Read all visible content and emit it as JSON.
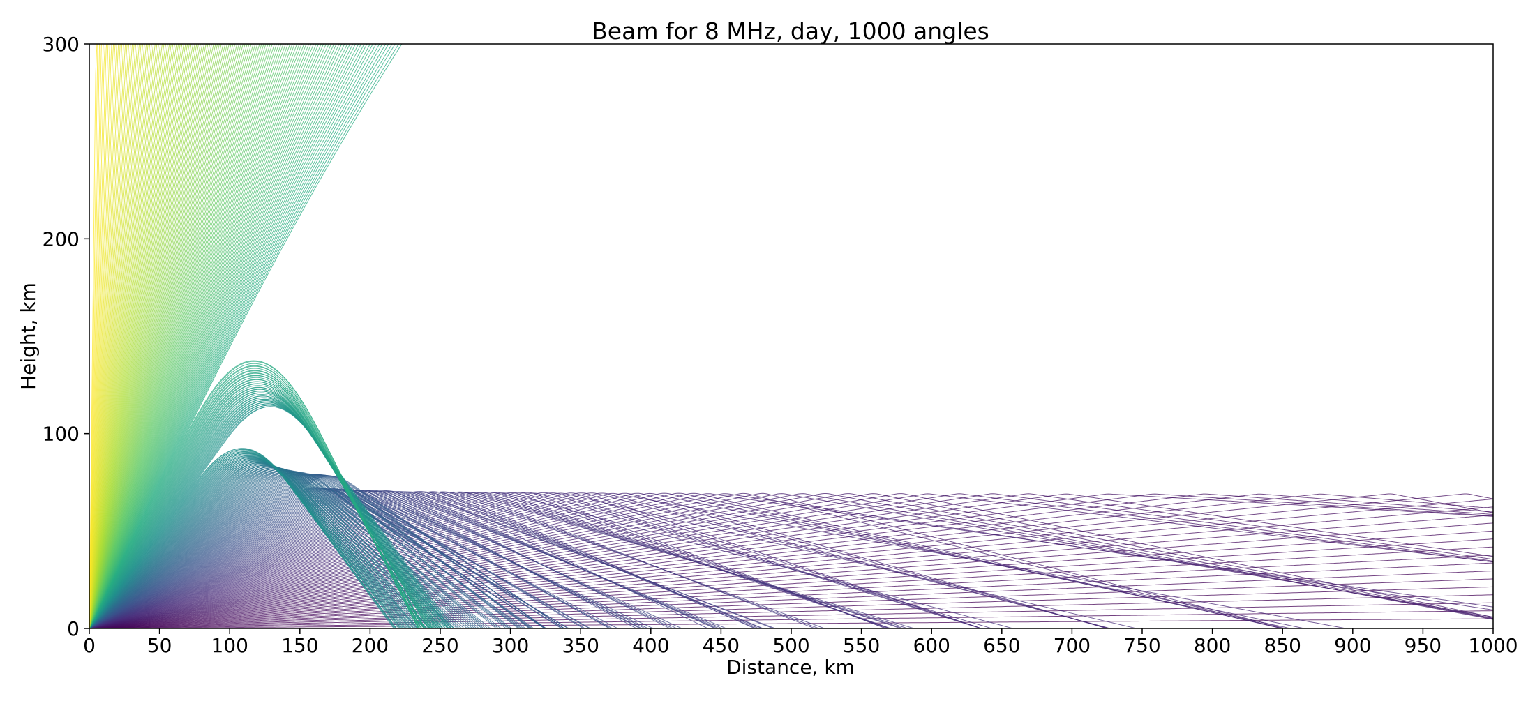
{
  "chart_data": {
    "type": "line",
    "title": "Beam for 8 MHz, day, 1000 angles",
    "xlabel": "Distance, km",
    "ylabel": "Height, km",
    "xlim": [
      0,
      1000
    ],
    "ylim": [
      0,
      300
    ],
    "x_ticks": [
      "0",
      "50",
      "100",
      "150",
      "200",
      "250",
      "300",
      "350",
      "400",
      "450",
      "500",
      "550",
      "600",
      "650",
      "700",
      "750",
      "800",
      "850",
      "900",
      "950",
      "1000"
    ],
    "y_ticks": [
      "0",
      "100",
      "200",
      "300"
    ],
    "grid": false,
    "legend": "none",
    "colormap": "viridis",
    "colors": {
      "low_angle": "#440154",
      "mid_angle": "#21918c",
      "high_angle": "#fde725"
    },
    "series_description": {
      "ray_count": 1000,
      "layer_heights_km": [
        92,
        100,
        128
      ],
      "ground_return_distances_km": [
        688,
        870
      ]
    }
  }
}
